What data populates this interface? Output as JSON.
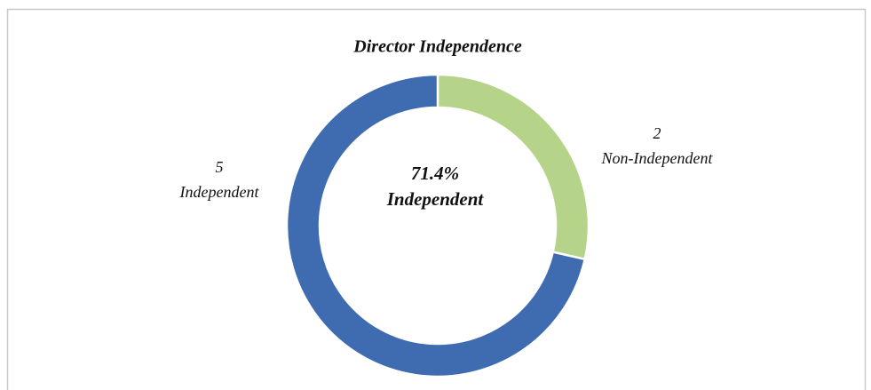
{
  "chart_data": {
    "type": "donut",
    "title": "Director Independence",
    "categories": [
      "Non-Independent",
      "Independent"
    ],
    "values": [
      2,
      5
    ],
    "colors": [
      "#b5d48a",
      "#3f6bb0"
    ],
    "center_label": [
      "71.4%",
      "Independent"
    ]
  }
}
